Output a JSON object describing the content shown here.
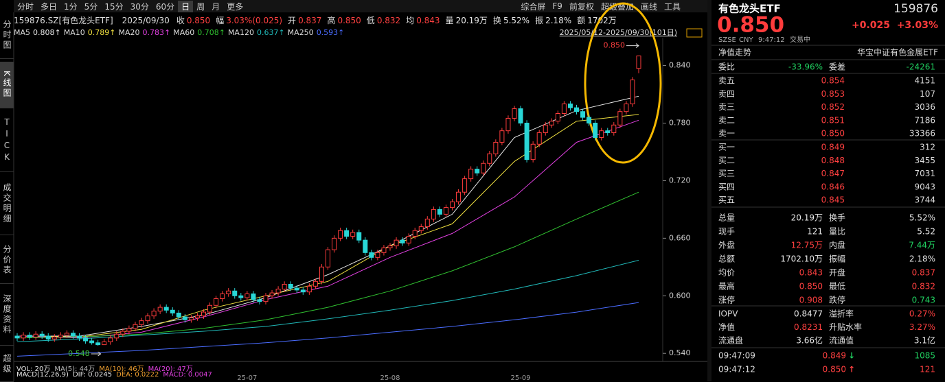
{
  "toolbar": {
    "left": [
      "分时",
      "多日",
      "1分",
      "5分",
      "15分",
      "30分",
      "60分",
      "日",
      "周",
      "月",
      "更多"
    ],
    "active": "日",
    "right": [
      "综合屏",
      "F9",
      "前复权",
      "超级叠加",
      "画线",
      "工具"
    ]
  },
  "side_tabs": [
    "分时图",
    "K线图",
    "TICK",
    "成交明细",
    "分价表",
    "深度资料",
    "超级"
  ],
  "side_active": "K线图",
  "info": {
    "symbol": "159876.SZ[有色龙头ETF]",
    "date": "2025/09/30",
    "items": [
      {
        "label": "收",
        "value": "0.850",
        "color": "#ff4040"
      },
      {
        "label": "幅",
        "value": "3.03%(0.025)",
        "color": "#ff4040"
      },
      {
        "label": "开",
        "value": "0.837",
        "color": "#ff4040"
      },
      {
        "label": "高",
        "value": "0.850",
        "color": "#ff4040"
      },
      {
        "label": "低",
        "value": "0.832",
        "color": "#ff4040"
      },
      {
        "label": "均",
        "value": "0.843",
        "color": "#ff4040"
      },
      {
        "label": "量",
        "value": "20.19万",
        "color": "#e8e8e8"
      },
      {
        "label": "换",
        "value": "5.52%",
        "color": "#e8e8e8"
      },
      {
        "label": "振",
        "value": "2.18%",
        "color": "#e8e8e8"
      },
      {
        "label": "额",
        "value": "1702万",
        "color": "#e8e8e8"
      }
    ]
  },
  "chart_data": {
    "type": "candlestick",
    "date_range": "2025/05/12-2025/09/30(101日)",
    "categories": [
      null,
      null,
      null,
      null,
      null,
      null,
      null,
      null,
      null,
      null,
      null,
      null,
      null,
      null,
      null,
      null,
      null,
      null,
      null,
      null,
      null,
      null,
      null,
      null,
      null,
      null,
      null,
      null,
      null,
      null,
      null,
      null,
      null,
      null,
      null,
      null,
      null,
      "25-07",
      null,
      null,
      null,
      null,
      null,
      null,
      null,
      null,
      null,
      null,
      null,
      null,
      null,
      null,
      null,
      null,
      null,
      null,
      null,
      null,
      null,
      null,
      "25-08",
      null,
      null,
      null,
      null,
      null,
      null,
      null,
      null,
      null,
      null,
      null,
      null,
      null,
      null,
      null,
      null,
      null,
      null,
      null,
      null,
      "25-09",
      null,
      null,
      null,
      null,
      null,
      null,
      null,
      null,
      null,
      null,
      null,
      null,
      null,
      null,
      null,
      null,
      null,
      null,
      null
    ],
    "open": [
      0.558,
      0.556,
      0.559,
      0.557,
      0.56,
      0.558,
      0.555,
      0.557,
      0.559,
      0.561,
      0.558,
      0.556,
      0.553,
      0.551,
      0.549,
      0.552,
      0.556,
      0.56,
      0.563,
      0.566,
      0.57,
      0.574,
      0.579,
      0.584,
      0.588,
      0.585,
      0.582,
      0.578,
      0.575,
      0.577,
      0.579,
      0.583,
      0.59,
      0.597,
      0.602,
      0.605,
      0.6,
      0.598,
      0.602,
      0.596,
      0.594,
      0.6,
      0.603,
      0.607,
      0.612,
      0.608,
      0.606,
      0.604,
      0.61,
      0.615,
      0.63,
      0.648,
      0.66,
      0.668,
      0.662,
      0.666,
      0.658,
      0.645,
      0.64,
      0.645,
      0.65,
      0.652,
      0.658,
      0.655,
      0.662,
      0.668,
      0.672,
      0.68,
      0.69,
      0.685,
      0.692,
      0.698,
      0.708,
      0.722,
      0.732,
      0.728,
      0.738,
      0.748,
      0.76,
      0.772,
      0.785,
      0.795,
      0.78,
      0.742,
      0.758,
      0.77,
      0.778,
      0.782,
      0.79,
      0.8,
      0.796,
      0.792,
      0.786,
      0.78,
      0.765,
      0.772,
      0.77,
      0.778,
      0.792,
      0.8,
      0.837
    ],
    "high": [
      0.561,
      0.562,
      0.562,
      0.563,
      0.563,
      0.561,
      0.56,
      0.562,
      0.564,
      0.564,
      0.561,
      0.559,
      0.556,
      0.554,
      0.555,
      0.559,
      0.563,
      0.566,
      0.569,
      0.573,
      0.577,
      0.582,
      0.587,
      0.591,
      0.591,
      0.588,
      0.585,
      0.581,
      0.58,
      0.582,
      0.586,
      0.593,
      0.6,
      0.605,
      0.608,
      0.608,
      0.603,
      0.605,
      0.605,
      0.599,
      0.603,
      0.606,
      0.61,
      0.615,
      0.615,
      0.611,
      0.609,
      0.613,
      0.618,
      0.633,
      0.651,
      0.663,
      0.671,
      0.671,
      0.669,
      0.669,
      0.661,
      0.648,
      0.648,
      0.653,
      0.655,
      0.661,
      0.661,
      0.665,
      0.671,
      0.675,
      0.683,
      0.693,
      0.693,
      0.695,
      0.701,
      0.711,
      0.725,
      0.735,
      0.735,
      0.741,
      0.751,
      0.763,
      0.775,
      0.788,
      0.798,
      0.798,
      0.783,
      0.761,
      0.773,
      0.781,
      0.785,
      0.793,
      0.803,
      0.803,
      0.799,
      0.795,
      0.789,
      0.783,
      0.775,
      0.775,
      0.781,
      0.795,
      0.803,
      0.828,
      0.85
    ],
    "low": [
      0.553,
      0.553,
      0.554,
      0.554,
      0.555,
      0.552,
      0.552,
      0.554,
      0.556,
      0.555,
      0.553,
      0.55,
      0.549,
      0.548,
      0.549,
      0.549,
      0.553,
      0.557,
      0.56,
      0.563,
      0.567,
      0.571,
      0.576,
      0.581,
      0.582,
      0.579,
      0.575,
      0.572,
      0.572,
      0.574,
      0.576,
      0.58,
      0.587,
      0.594,
      0.599,
      0.597,
      0.595,
      0.595,
      0.593,
      0.591,
      0.591,
      0.597,
      0.6,
      0.604,
      0.605,
      0.603,
      0.601,
      0.601,
      0.607,
      0.612,
      0.627,
      0.645,
      0.657,
      0.659,
      0.659,
      0.655,
      0.642,
      0.637,
      0.637,
      0.642,
      0.647,
      0.649,
      0.652,
      0.652,
      0.659,
      0.665,
      0.669,
      0.677,
      0.682,
      0.682,
      0.689,
      0.695,
      0.705,
      0.719,
      0.725,
      0.725,
      0.735,
      0.745,
      0.757,
      0.769,
      0.782,
      0.777,
      0.739,
      0.739,
      0.755,
      0.767,
      0.775,
      0.779,
      0.787,
      0.793,
      0.789,
      0.783,
      0.777,
      0.762,
      0.762,
      0.767,
      0.767,
      0.775,
      0.789,
      0.797,
      0.832
    ],
    "close": [
      0.556,
      0.559,
      0.557,
      0.56,
      0.558,
      0.555,
      0.557,
      0.559,
      0.561,
      0.558,
      0.556,
      0.553,
      0.551,
      0.549,
      0.552,
      0.556,
      0.56,
      0.563,
      0.566,
      0.57,
      0.574,
      0.579,
      0.584,
      0.588,
      0.585,
      0.582,
      0.578,
      0.575,
      0.577,
      0.579,
      0.583,
      0.59,
      0.597,
      0.602,
      0.605,
      0.6,
      0.598,
      0.602,
      0.596,
      0.594,
      0.6,
      0.603,
      0.607,
      0.612,
      0.608,
      0.606,
      0.604,
      0.61,
      0.615,
      0.63,
      0.648,
      0.66,
      0.668,
      0.662,
      0.666,
      0.658,
      0.645,
      0.64,
      0.645,
      0.65,
      0.652,
      0.658,
      0.655,
      0.662,
      0.668,
      0.672,
      0.68,
      0.69,
      0.685,
      0.692,
      0.698,
      0.708,
      0.722,
      0.732,
      0.728,
      0.738,
      0.748,
      0.76,
      0.772,
      0.785,
      0.795,
      0.78,
      0.742,
      0.758,
      0.77,
      0.778,
      0.782,
      0.79,
      0.8,
      0.796,
      0.792,
      0.786,
      0.78,
      0.765,
      0.772,
      0.77,
      0.778,
      0.792,
      0.8,
      0.825,
      0.85
    ],
    "up_color": "#ff3c3c",
    "down_color": "#29d6d6",
    "x": [
      0,
      10,
      20,
      30,
      40,
      50,
      60,
      70,
      80,
      90,
      100
    ],
    "series": [
      {
        "name": "MA5",
        "label": "0.808↑",
        "color": "#e8e8e8",
        "values": [
          0.558,
          0.558,
          0.568,
          0.58,
          0.598,
          0.622,
          0.652,
          0.685,
          0.765,
          0.793,
          0.808
        ]
      },
      {
        "name": "MA10",
        "label": "0.789↑",
        "color": "#f0e040",
        "values": [
          0.558,
          0.557,
          0.565,
          0.585,
          0.6,
          0.615,
          0.652,
          0.675,
          0.74,
          0.782,
          0.789
        ]
      },
      {
        "name": "MA20",
        "label": "0.783↑",
        "color": "#e040e0",
        "values": [
          0.558,
          0.556,
          0.562,
          0.578,
          0.596,
          0.61,
          0.64,
          0.665,
          0.703,
          0.76,
          0.783
        ]
      },
      {
        "name": "MA60",
        "label": "0.708↑",
        "color": "#30c030",
        "values": [
          0.556,
          0.557,
          0.56,
          0.566,
          0.575,
          0.588,
          0.605,
          0.626,
          0.651,
          0.68,
          0.708
        ]
      },
      {
        "name": "MA120",
        "label": "0.637↑",
        "color": "#20b8b8",
        "values": [
          0.552,
          0.555,
          0.559,
          0.563,
          0.568,
          0.576,
          0.585,
          0.595,
          0.607,
          0.621,
          0.637
        ]
      },
      {
        "name": "MA250",
        "label": "0.593↑",
        "color": "#4a6cff",
        "values": [
          0.537,
          0.54,
          0.543,
          0.547,
          0.551,
          0.556,
          0.562,
          0.568,
          0.575,
          0.583,
          0.593
        ]
      }
    ],
    "ylim": [
      0.533,
      0.869
    ],
    "yticks": [
      {
        "value": 0.54,
        "label": "0.540"
      },
      {
        "value": 0.6,
        "label": "0.600"
      },
      {
        "value": 0.66,
        "label": "0.660"
      },
      {
        "value": 0.72,
        "label": "0.720"
      },
      {
        "value": 0.78,
        "label": "0.780"
      },
      {
        "value": 0.84,
        "label": "0.840"
      }
    ],
    "high_label": "0.850",
    "low_label": "0.548",
    "vol_legend": [
      {
        "text": "VOL: 20万",
        "color": "#e8e8e8"
      },
      {
        "text": "MA(5): 44万",
        "color": "#bbbbbb"
      },
      {
        "text": "MA(10): 46万",
        "color": "#f0a030"
      },
      {
        "text": "MA(20): 47万",
        "color": "#e040e0"
      }
    ],
    "macd_legend": [
      {
        "text": "MACD(12,26,9)",
        "color": "#e8e8e8"
      },
      {
        "text": "DIF: 0.0245",
        "color": "#e8e8e8"
      },
      {
        "text": "DEA: 0.0222",
        "color": "#f0a030"
      },
      {
        "text": "MACD: 0.0047",
        "color": "#e040e0"
      }
    ]
  },
  "quote": {
    "name": "有色龙头ETF",
    "code": "159876",
    "price": "0.850",
    "change": "+0.025",
    "pct": "+3.03%",
    "exchange": "SZSE",
    "currency": "CNY",
    "time": "9:47:12",
    "status": "交易中",
    "nav_tab": "净值走势",
    "index_name": "华宝中证有色金属ETF"
  },
  "order_book": {
    "ratio_label": "委比",
    "ratio": "-33.96%",
    "diff_label": "委差",
    "diff": "-24261",
    "price_color": "#ff4040",
    "asks": [
      {
        "label": "卖五",
        "price": "0.854",
        "volume": "4151"
      },
      {
        "label": "卖四",
        "price": "0.853",
        "volume": "107"
      },
      {
        "label": "卖三",
        "price": "0.852",
        "volume": "3036"
      },
      {
        "label": "卖二",
        "price": "0.851",
        "volume": "7186"
      },
      {
        "label": "卖一",
        "price": "0.850",
        "volume": "33366"
      }
    ],
    "bids": [
      {
        "label": "买一",
        "price": "0.849",
        "volume": "312"
      },
      {
        "label": "买二",
        "price": "0.848",
        "volume": "3455"
      },
      {
        "label": "买三",
        "price": "0.847",
        "volume": "7031"
      },
      {
        "label": "买四",
        "price": "0.846",
        "volume": "9043"
      },
      {
        "label": "买五",
        "price": "0.845",
        "volume": "3744"
      }
    ]
  },
  "stats": [
    {
      "label": "总量",
      "value": "20.19万",
      "color": "#e8e8e8",
      "label2": "换手",
      "value2": "5.52%",
      "color2": "#e8e8e8"
    },
    {
      "label": "现手",
      "value": "121",
      "color": "#e8e8e8",
      "label2": "量比",
      "value2": "5.52",
      "color2": "#e8e8e8"
    },
    {
      "label": "外盘",
      "value": "12.75万",
      "color": "#ff4040",
      "label2": "内盘",
      "value2": "7.44万",
      "color2": "#20d060"
    },
    {
      "label": "总额",
      "value": "1702.10万",
      "color": "#e8e8e8",
      "label2": "振幅",
      "value2": "2.18%",
      "color2": "#e8e8e8"
    },
    {
      "label": "均价",
      "value": "0.843",
      "color": "#ff4040",
      "label2": "开盘",
      "value2": "0.837",
      "color2": "#ff4040"
    },
    {
      "label": "最高",
      "value": "0.850",
      "color": "#ff4040",
      "label2": "最低",
      "value2": "0.832",
      "color2": "#ff4040"
    },
    {
      "label": "涨停",
      "value": "0.908",
      "color": "#ff4040",
      "label2": "跌停",
      "value2": "0.743",
      "color2": "#20d060"
    }
  ],
  "nav_stats": [
    {
      "label": "IOPV",
      "value": "0.8477",
      "color": "#e8e8e8",
      "label2": "溢折率",
      "value2": "0.27%",
      "color2": "#ff4040"
    },
    {
      "label": "净值",
      "value": "0.8231",
      "color": "#ff4040",
      "label2": "升贴水率",
      "value2": "3.27%",
      "color2": "#ff4040"
    },
    {
      "label": "流通盘",
      "value": "3.66亿",
      "color": "#e8e8e8",
      "label2": "流通值",
      "value2": "3.1亿",
      "color2": "#e8e8e8"
    }
  ],
  "trades": [
    {
      "time": "09:47:09",
      "price": "0.849",
      "arrow": "↓",
      "arrow_color": "#20d060",
      "volume": "1085",
      "volume_color": "#20d060"
    },
    {
      "time": "09:47:12",
      "price": "0.850",
      "arrow": "↑",
      "arrow_color": "#ff4040",
      "volume": "121",
      "volume_color": "#ff4040"
    }
  ]
}
